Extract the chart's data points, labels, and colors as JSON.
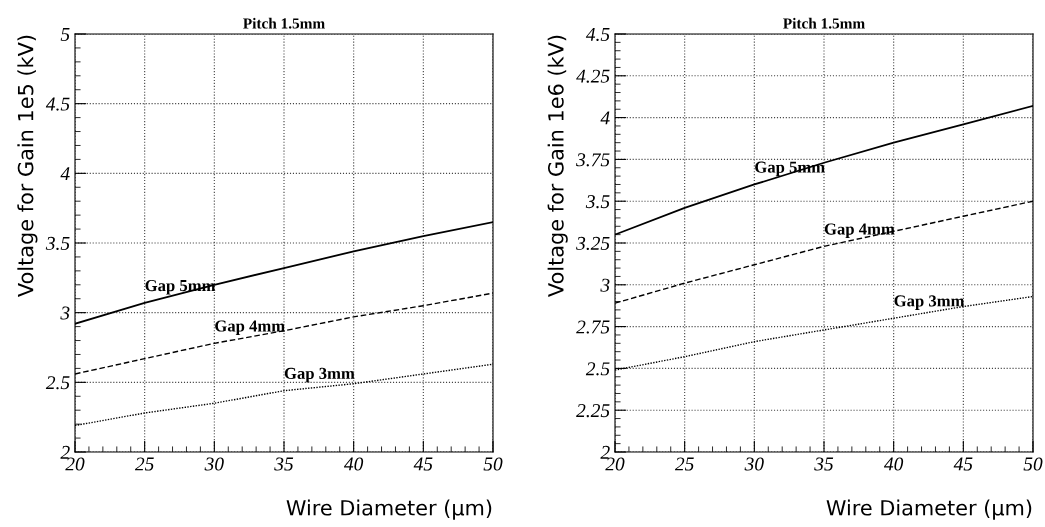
{
  "chart_data": [
    {
      "type": "line",
      "title": "Pitch 1.5mm",
      "xlabel": "Wire Diameter (μm)",
      "ylabel": "Voltage for Gain 1e5 (kV)",
      "x": [
        20,
        25,
        30,
        35,
        40,
        45,
        50
      ],
      "series": [
        {
          "name": "Gap 5mm",
          "color": "#000000",
          "line_style": "solid",
          "values": [
            2.92,
            3.07,
            3.2,
            3.32,
            3.44,
            3.55,
            3.65
          ]
        },
        {
          "name": "Gap 4mm",
          "color": "#000000",
          "line_style": "dashed",
          "values": [
            2.56,
            2.67,
            2.78,
            2.87,
            2.97,
            3.05,
            3.14
          ]
        },
        {
          "name": "Gap 3mm",
          "color": "#000000",
          "line_style": "dotted",
          "values": [
            2.19,
            2.28,
            2.35,
            2.44,
            2.49,
            2.56,
            2.63
          ]
        }
      ],
      "xlim": [
        20,
        50
      ],
      "xticks": [
        20,
        25,
        30,
        35,
        40,
        45,
        50
      ],
      "ylim": [
        2,
        5
      ],
      "yticks": [
        2,
        2.5,
        3,
        3.5,
        4,
        4.5,
        5
      ],
      "grid": true,
      "legend": false
    },
    {
      "type": "line",
      "title": "Pitch 1.5mm",
      "xlabel": "Wire Diameter (μm)",
      "ylabel": "Voltage for Gain 1e6 (kV)",
      "x": [
        20,
        25,
        30,
        35,
        40,
        45,
        50
      ],
      "series": [
        {
          "name": "Gap 5mm",
          "color": "#000000",
          "line_style": "solid",
          "values": [
            3.3,
            3.46,
            3.6,
            3.73,
            3.85,
            3.96,
            4.07
          ]
        },
        {
          "name": "Gap 4mm",
          "color": "#000000",
          "line_style": "dashed",
          "values": [
            2.89,
            3.01,
            3.12,
            3.23,
            3.32,
            3.41,
            3.5
          ]
        },
        {
          "name": "Gap 3mm",
          "color": "#000000",
          "line_style": "dotted",
          "values": [
            2.49,
            2.57,
            2.66,
            2.73,
            2.8,
            2.87,
            2.93
          ]
        }
      ],
      "xlim": [
        20,
        50
      ],
      "xticks": [
        20,
        25,
        30,
        35,
        40,
        45,
        50
      ],
      "ylim": [
        2,
        4.5
      ],
      "yticks": [
        2,
        2.25,
        2.5,
        2.75,
        3,
        3.25,
        3.5,
        3.75,
        4,
        4.25,
        4.5
      ],
      "grid": true,
      "legend": false
    }
  ]
}
